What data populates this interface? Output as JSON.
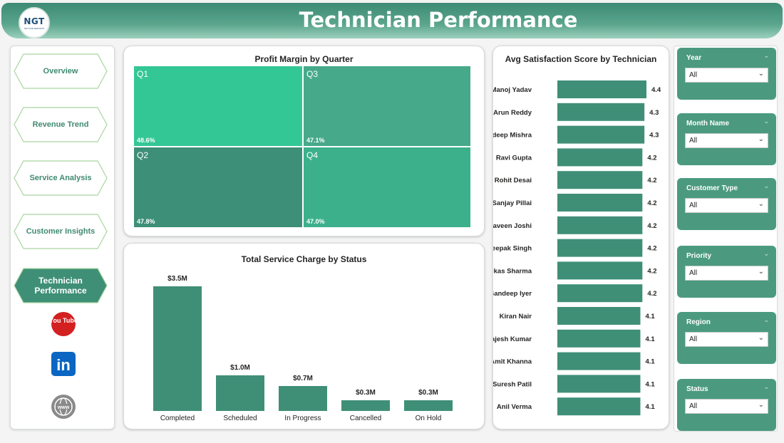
{
  "header": {
    "title": "Technician Performance",
    "logo_text": "NGT",
    "logo_subtext": "NGT AND REPORTS"
  },
  "nav": {
    "items": [
      {
        "label": "Overview",
        "active": false
      },
      {
        "label": "Revenue Trend",
        "active": false
      },
      {
        "label": "Service Analysis",
        "active": false
      },
      {
        "label": "Customer Insights",
        "active": false
      },
      {
        "label": "Technician Performance",
        "active": true
      }
    ],
    "social": [
      {
        "icon": "youtube-icon",
        "label": "You Tube"
      },
      {
        "icon": "linkedin-icon",
        "label": "in"
      },
      {
        "icon": "globe-icon",
        "label": "www"
      }
    ]
  },
  "treemap": {
    "title": "Profit Margin by Quarter",
    "cells": [
      {
        "label": "Q1",
        "value": "48.6%",
        "color": "#33c795"
      },
      {
        "label": "Q3",
        "value": "47.1%",
        "color": "#46a98a"
      },
      {
        "label": "Q2",
        "value": "47.8%",
        "color": "#3d8f77"
      },
      {
        "label": "Q4",
        "value": "47.0%",
        "color": "#3cb08b"
      }
    ]
  },
  "service_chart": {
    "title": "Total Service Charge by Status"
  },
  "satisfaction_chart": {
    "title": "Avg Satisfaction Score by Technician"
  },
  "chart_data": [
    {
      "type": "bar",
      "title": "Total Service Charge by Status",
      "categories": [
        "Completed",
        "Scheduled",
        "In Progress",
        "Cancelled",
        "On Hold"
      ],
      "values": [
        3.5,
        1.0,
        0.7,
        0.3,
        0.3
      ],
      "data_labels": [
        "$3.5M",
        "$1.0M",
        "$0.7M",
        "$0.3M",
        "$0.3M"
      ],
      "unit": "$M",
      "color": "#3f8f77"
    },
    {
      "type": "bar",
      "orientation": "horizontal",
      "title": "Avg Satisfaction Score by Technician",
      "categories": [
        "Manoj Yadav",
        "Arun Reddy",
        "Pradeep Mishra",
        "Ravi Gupta",
        "Rohit Desai",
        "Sanjay Pillai",
        "Naveen Joshi",
        "Deepak Singh",
        "Vikas Sharma",
        "Sandeep Iyer",
        "Kiran Nair",
        "Rajesh Kumar",
        "Amit Khanna",
        "Suresh Patil",
        "Anil Verma"
      ],
      "values": [
        4.4,
        4.3,
        4.3,
        4.2,
        4.2,
        4.2,
        4.2,
        4.2,
        4.2,
        4.2,
        4.1,
        4.1,
        4.1,
        4.1,
        4.1
      ],
      "color": "#3f8f77"
    },
    {
      "type": "treemap",
      "title": "Profit Margin by Quarter",
      "categories": [
        "Q1",
        "Q3",
        "Q2",
        "Q4"
      ],
      "values": [
        48.6,
        47.1,
        47.8,
        47.0
      ],
      "unit": "%"
    }
  ],
  "slicers": [
    {
      "label": "Year",
      "value": "All"
    },
    {
      "label": "Month Name",
      "value": "All"
    },
    {
      "label": "Customer Type",
      "value": "All"
    },
    {
      "label": "Priority",
      "value": "All"
    },
    {
      "label": "Region",
      "value": "All"
    },
    {
      "label": "Status",
      "value": "All"
    }
  ],
  "colors": {
    "accent": "#4b9a80",
    "header": "#3d8a74",
    "bar": "#3f8f77",
    "nav_text": "#3f8a72"
  }
}
